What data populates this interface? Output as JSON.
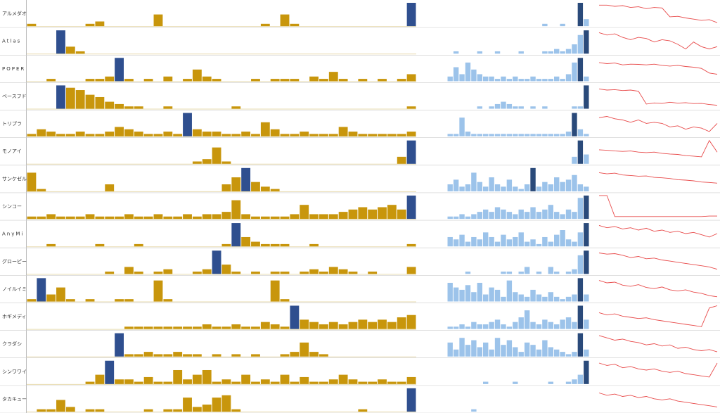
{
  "colors": {
    "volume": "#c8960c",
    "volume_highlight": "#2f4f8f",
    "ratio": "#9cc3ea",
    "ratio_highlight": "#2a4a7a",
    "price": "#e84a4a"
  },
  "rows": [
    {
      "label": "アルメダオ",
      "highlight": 39,
      "ratio_highlight": 22,
      "volume": [
        1,
        0,
        0,
        0,
        0,
        0,
        1,
        2,
        0,
        0,
        0,
        0,
        0,
        5,
        0,
        0,
        0,
        0,
        0,
        0,
        0,
        0,
        0,
        0,
        1,
        0,
        5,
        1,
        0,
        0,
        0,
        0,
        0,
        0,
        0,
        0,
        0,
        0,
        0,
        10
      ],
      "ratio": [
        0,
        0,
        0,
        0,
        0,
        0,
        0,
        0,
        0,
        0,
        0,
        0,
        0,
        0,
        0,
        0,
        1,
        0,
        0,
        1,
        0,
        0,
        10,
        3
      ],
      "price": [
        9,
        9,
        8.5,
        8.8,
        8,
        8.3,
        7.5,
        8,
        7.8,
        4,
        4.2,
        3.5,
        3,
        2.5,
        2.8,
        1.5
      ]
    },
    {
      "label": "Atlas",
      "highlight": 3,
      "ratio_highlight": 23,
      "volume": [
        0,
        0,
        0,
        10,
        3,
        1,
        0,
        0,
        0,
        0,
        0,
        0,
        0,
        0,
        0,
        0,
        0,
        0,
        0,
        0,
        0,
        0,
        0,
        0,
        0,
        0,
        0,
        0,
        0,
        0,
        0,
        0,
        0,
        0,
        0,
        0,
        0,
        0,
        0,
        0
      ],
      "ratio": [
        0,
        1,
        0,
        0,
        0,
        1,
        0,
        0,
        1,
        0,
        0,
        0,
        1,
        0,
        0,
        0,
        1,
        1,
        2,
        1,
        2,
        4,
        8,
        10
      ],
      "price": [
        9,
        8,
        8.5,
        7,
        6,
        7,
        6.5,
        5,
        6,
        5.5,
        4,
        2,
        5,
        3,
        2,
        3
      ]
    },
    {
      "label": "POPER",
      "highlight": 9,
      "ratio_highlight": 22,
      "volume": [
        0,
        0,
        1,
        0,
        0,
        0,
        1,
        1,
        2,
        10,
        1,
        0,
        1,
        0,
        2,
        0,
        1,
        5,
        2,
        1,
        0,
        0,
        0,
        1,
        0,
        1,
        1,
        1,
        0,
        2,
        1,
        4,
        1,
        0,
        1,
        0,
        1,
        0,
        1,
        3
      ],
      "ratio": [
        2,
        6,
        3,
        8,
        5,
        3,
        2,
        2,
        1,
        2,
        1,
        2,
        1,
        1,
        2,
        1,
        1,
        1,
        2,
        1,
        3,
        8,
        10,
        2
      ],
      "price": [
        8,
        7.5,
        7.8,
        7,
        7.3,
        7.2,
        7,
        7.3,
        6.8,
        6.5,
        6.8,
        6.3,
        6,
        5.5,
        3.5,
        3
      ]
    },
    {
      "label": "ベースフド",
      "highlight": 3,
      "ratio_highlight": 23,
      "volume": [
        0,
        0,
        0,
        10,
        9,
        8,
        6,
        5,
        3,
        2,
        1,
        1,
        0,
        0,
        1,
        0,
        0,
        0,
        0,
        0,
        0,
        1,
        0,
        0,
        0,
        0,
        0,
        0,
        0,
        0,
        0,
        0,
        0,
        0,
        0,
        0,
        0,
        0,
        0,
        1
      ],
      "ratio": [
        0,
        0,
        0,
        0,
        0,
        1,
        0,
        1,
        2,
        3,
        2,
        1,
        1,
        0,
        1,
        0,
        1,
        0,
        0,
        0,
        0,
        1,
        1,
        10
      ],
      "price": [
        8.5,
        8,
        8.2,
        7.8,
        8,
        7.5,
        2,
        2.5,
        2.3,
        2.8,
        2.4,
        2.6,
        2.2,
        2.3,
        1.8,
        1.5
      ]
    },
    {
      "label": "トリプラ",
      "highlight": 16,
      "ratio_highlight": 21,
      "volume": [
        1,
        3,
        2,
        1,
        1,
        2,
        1,
        1,
        2,
        4,
        3,
        2,
        1,
        1,
        2,
        1,
        10,
        3,
        2,
        2,
        1,
        1,
        2,
        1,
        6,
        3,
        1,
        1,
        2,
        1,
        1,
        1,
        4,
        2,
        1,
        1,
        1,
        1,
        1,
        2
      ],
      "ratio": [
        1,
        1,
        8,
        2,
        1,
        1,
        1,
        1,
        1,
        1,
        1,
        1,
        1,
        1,
        1,
        1,
        1,
        1,
        1,
        1,
        2,
        10,
        3,
        1
      ],
      "price": [
        8,
        8.5,
        7.5,
        7,
        6,
        7,
        5.5,
        6,
        5.5,
        4,
        4.5,
        3,
        4,
        3.5,
        2,
        5.5
      ]
    },
    {
      "label": "モノアイ",
      "highlight": 39,
      "ratio_highlight": 22,
      "volume": [
        0,
        0,
        0,
        0,
        0,
        0,
        0,
        0,
        0,
        0,
        0,
        0,
        0,
        0,
        0,
        0,
        0,
        1,
        2,
        7,
        1,
        0,
        0,
        0,
        0,
        0,
        0,
        0,
        0,
        0,
        0,
        0,
        0,
        0,
        0,
        0,
        0,
        0,
        3,
        10
      ],
      "ratio": [
        0,
        0,
        0,
        0,
        0,
        0,
        0,
        0,
        0,
        0,
        0,
        0,
        0,
        0,
        0,
        0,
        0,
        0,
        0,
        0,
        0,
        3,
        10,
        4
      ],
      "price": [
        6,
        5.8,
        5.5,
        5.3,
        5.5,
        5,
        4.8,
        5,
        4.5,
        4.2,
        4,
        3.5,
        3.3,
        3,
        10,
        5
      ]
    },
    {
      "label": "サンケゼル",
      "highlight": 22,
      "ratio_highlight": 14,
      "volume": [
        8,
        1,
        0,
        0,
        0,
        0,
        0,
        0,
        3,
        0,
        0,
        0,
        0,
        0,
        0,
        0,
        0,
        0,
        0,
        0,
        3,
        6,
        10,
        4,
        2,
        1,
        0,
        0,
        0,
        0,
        0,
        0,
        0,
        0,
        0,
        0,
        0,
        0,
        0,
        0
      ],
      "ratio": [
        3,
        5,
        2,
        3,
        8,
        4,
        2,
        6,
        3,
        2,
        5,
        2,
        1,
        3,
        10,
        2,
        4,
        3,
        6,
        4,
        5,
        7,
        3,
        2
      ],
      "price": [
        8,
        7.5,
        7.8,
        7,
        6.8,
        6.5,
        6.6,
        6,
        5.8,
        5.5,
        5,
        4.8,
        4.5,
        4,
        3.8,
        3.5
      ]
    },
    {
      "label": "シンコー",
      "highlight": 39,
      "ratio_highlight": 23,
      "volume": [
        1,
        1,
        2,
        1,
        1,
        1,
        2,
        1,
        1,
        1,
        2,
        1,
        1,
        2,
        1,
        1,
        2,
        1,
        2,
        2,
        3,
        8,
        2,
        1,
        1,
        1,
        1,
        2,
        6,
        2,
        2,
        2,
        3,
        4,
        5,
        4,
        5,
        6,
        4,
        10
      ],
      "ratio": [
        1,
        1,
        2,
        1,
        2,
        3,
        4,
        3,
        5,
        4,
        3,
        2,
        4,
        3,
        5,
        3,
        4,
        6,
        3,
        2,
        4,
        3,
        9,
        10
      ],
      "price": [
        10,
        10,
        1,
        1,
        1,
        1,
        1,
        1,
        1,
        1,
        1,
        1,
        1,
        1,
        1.2,
        1.2
      ]
    },
    {
      "label": "AnyMi",
      "highlight": 21,
      "ratio_highlight": 23,
      "volume": [
        0,
        0,
        1,
        0,
        0,
        0,
        0,
        1,
        0,
        0,
        0,
        1,
        0,
        0,
        0,
        0,
        0,
        0,
        0,
        0,
        1,
        10,
        4,
        2,
        1,
        1,
        1,
        0,
        0,
        1,
        0,
        0,
        0,
        0,
        0,
        0,
        0,
        0,
        0,
        1
      ],
      "ratio": [
        4,
        3,
        5,
        2,
        4,
        3,
        6,
        4,
        2,
        5,
        3,
        4,
        6,
        2,
        3,
        1,
        4,
        2,
        5,
        7,
        3,
        2,
        6,
        10
      ],
      "price": [
        9,
        8,
        8.5,
        7.5,
        8,
        7,
        7.8,
        6.5,
        7,
        6,
        6.5,
        5.5,
        6,
        5,
        4,
        5.5
      ]
    },
    {
      "label": "グローピー",
      "highlight": 19,
      "ratio_highlight": 23,
      "volume": [
        0,
        0,
        0,
        0,
        0,
        0,
        0,
        0,
        1,
        0,
        3,
        1,
        0,
        1,
        2,
        0,
        0,
        1,
        2,
        10,
        4,
        1,
        0,
        1,
        0,
        1,
        1,
        0,
        1,
        2,
        1,
        3,
        2,
        1,
        0,
        1,
        0,
        0,
        0,
        3
      ],
      "ratio": [
        0,
        0,
        0,
        1,
        0,
        0,
        0,
        0,
        0,
        1,
        1,
        0,
        1,
        3,
        0,
        1,
        0,
        3,
        1,
        0,
        1,
        2,
        8,
        10
      ],
      "price": [
        9,
        8.5,
        8.7,
        8,
        7,
        7.5,
        6.5,
        6.8,
        6,
        5.5,
        5,
        4.5,
        4,
        3.5,
        3,
        2
      ]
    },
    {
      "label": "ノイルイミ",
      "highlight": 1,
      "ratio_highlight": 22,
      "volume": [
        1,
        10,
        3,
        6,
        1,
        0,
        1,
        0,
        0,
        1,
        1,
        0,
        0,
        9,
        1,
        0,
        0,
        0,
        0,
        0,
        0,
        0,
        0,
        0,
        0,
        9,
        1,
        0,
        0,
        0,
        0,
        0,
        0,
        0,
        0,
        0,
        0,
        0,
        0,
        0
      ],
      "ratio": [
        8,
        6,
        5,
        7,
        4,
        8,
        3,
        6,
        5,
        2,
        9,
        4,
        3,
        2,
        5,
        3,
        2,
        4,
        2,
        1,
        2,
        3,
        10,
        3
      ],
      "price": [
        9,
        8,
        8.3,
        7,
        6.5,
        7.2,
        6,
        5.5,
        6.2,
        5,
        4.5,
        5,
        4,
        3.5,
        2.5,
        2
      ]
    },
    {
      "label": "ホギメディ",
      "highlight": 27,
      "ratio_highlight": 22,
      "volume": [
        0,
        0,
        0,
        0,
        0,
        0,
        0,
        0,
        0,
        0,
        1,
        1,
        1,
        1,
        1,
        1,
        1,
        1,
        2,
        1,
        1,
        2,
        1,
        1,
        3,
        2,
        1,
        10,
        4,
        3,
        2,
        3,
        2,
        3,
        4,
        3,
        4,
        3,
        5,
        6
      ],
      "ratio": [
        1,
        1,
        2,
        1,
        3,
        2,
        2,
        3,
        4,
        2,
        1,
        3,
        5,
        8,
        3,
        2,
        4,
        3,
        2,
        4,
        5,
        3,
        10,
        4
      ],
      "price": [
        7,
        6,
        6.5,
        5.5,
        5,
        4.5,
        4.8,
        4,
        3.5,
        3,
        2.5,
        2,
        1.5,
        1,
        9,
        10
      ]
    },
    {
      "label": "クラダシ",
      "highlight": 9,
      "ratio_highlight": 22,
      "volume": [
        0,
        0,
        0,
        0,
        0,
        0,
        0,
        0,
        0,
        10,
        1,
        1,
        2,
        1,
        1,
        2,
        1,
        1,
        0,
        1,
        0,
        1,
        0,
        1,
        0,
        0,
        1,
        2,
        6,
        2,
        1,
        0,
        0,
        0,
        0,
        0,
        0,
        0,
        0,
        0
      ],
      "ratio": [
        6,
        3,
        8,
        5,
        7,
        4,
        6,
        3,
        8,
        5,
        7,
        4,
        2,
        6,
        5,
        3,
        7,
        4,
        3,
        2,
        1,
        2,
        10,
        3
      ],
      "price": [
        9,
        8,
        7,
        7.5,
        6.5,
        6,
        5,
        5.5,
        4.5,
        5,
        3.5,
        4,
        3,
        2.5,
        3,
        2
      ]
    },
    {
      "label": "シンワワイ",
      "highlight": 8,
      "ratio_highlight": 23,
      "volume": [
        0,
        0,
        0,
        0,
        0,
        0,
        1,
        4,
        10,
        2,
        2,
        1,
        3,
        1,
        1,
        6,
        2,
        4,
        6,
        1,
        2,
        1,
        4,
        1,
        2,
        1,
        4,
        1,
        3,
        1,
        1,
        2,
        4,
        2,
        1,
        1,
        2,
        1,
        1,
        3
      ],
      "ratio": [
        0,
        0,
        0,
        0,
        0,
        0,
        1,
        0,
        0,
        0,
        0,
        1,
        0,
        0,
        0,
        0,
        0,
        1,
        0,
        0,
        1,
        2,
        4,
        10
      ],
      "price": [
        9,
        8,
        8.5,
        7,
        7.5,
        6.5,
        6,
        6.5,
        5.5,
        5,
        5.5,
        4.5,
        4,
        3.5,
        3,
        9
      ]
    },
    {
      "label": "タカキュー",
      "highlight": 39,
      "volume": [
        0,
        1,
        1,
        5,
        2,
        0,
        1,
        1,
        0,
        0,
        0,
        0,
        1,
        0,
        1,
        1,
        6,
        2,
        3,
        6,
        7,
        1,
        0,
        0,
        0,
        0,
        0,
        0,
        0,
        0,
        0,
        0,
        0,
        0,
        1,
        0,
        0,
        0,
        0,
        10
      ],
      "ratio": [
        0,
        0,
        0,
        0,
        1,
        0,
        0,
        0,
        0,
        0,
        0,
        0,
        0,
        0,
        0,
        0,
        0,
        0,
        0,
        0,
        0,
        0,
        0,
        0
      ],
      "price": [
        8,
        7,
        7.5,
        6.5,
        7,
        6,
        6.5,
        5.5,
        5,
        5.5,
        4.5,
        4,
        3.5,
        3,
        2.5,
        2
      ]
    }
  ]
}
